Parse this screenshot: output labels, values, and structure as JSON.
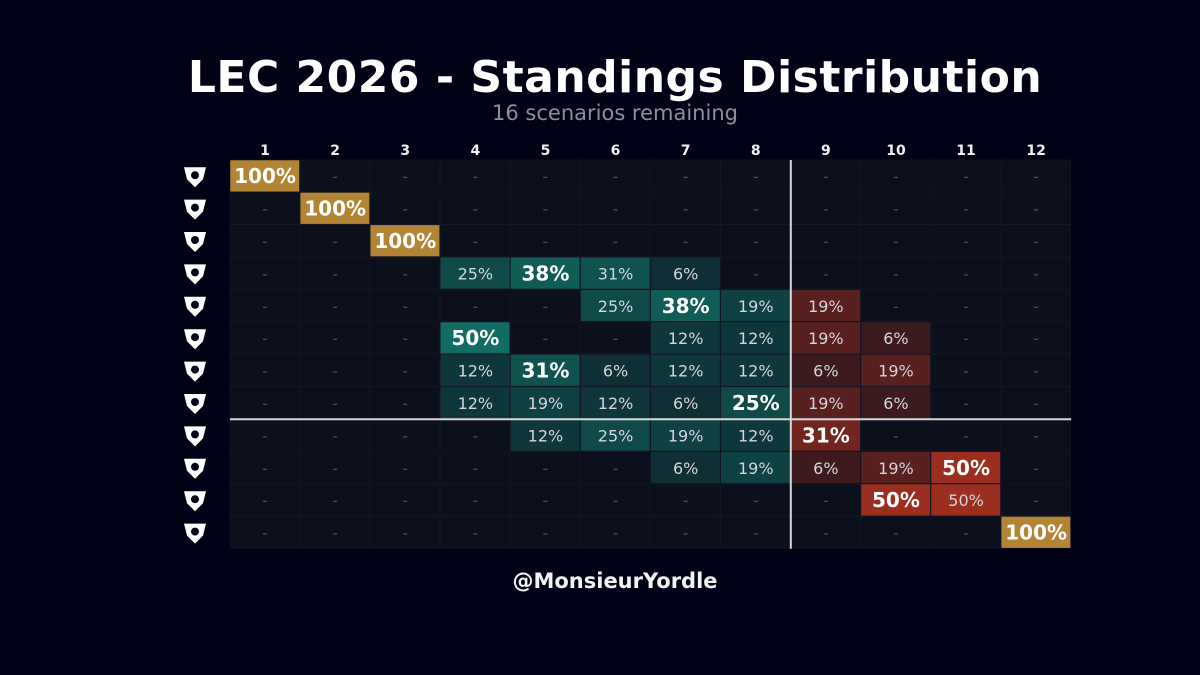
{
  "title": "LEC 2026 - Standings Distribution",
  "subtitle": "16 scenarios remaining",
  "credit": "@MonsieurYordle",
  "colors": {
    "background": "#020217",
    "empty_cell": "#0c0f1c",
    "gold": "#b28434",
    "teal": "#12776c",
    "red": "#a2301f",
    "divider": "#d8d8d8",
    "dash": "#4a4c5a"
  },
  "chart_data": {
    "type": "heatmap",
    "title": "LEC 2026 - Standings Distribution",
    "subtitle": "16 scenarios remaining",
    "columns": [
      "1",
      "2",
      "3",
      "4",
      "5",
      "6",
      "7",
      "8",
      "9",
      "10",
      "11",
      "12"
    ],
    "row_icons": [
      "team-logo",
      "team-logo",
      "team-logo",
      "team-logo",
      "team-logo",
      "team-logo",
      "team-logo",
      "team-logo",
      "team-logo",
      "team-logo",
      "team-logo",
      "team-logo"
    ],
    "empty_label": "-",
    "unit": "%",
    "values": [
      [
        100,
        0,
        0,
        0,
        0,
        0,
        0,
        0,
        0,
        0,
        0,
        0
      ],
      [
        0,
        100,
        0,
        0,
        0,
        0,
        0,
        0,
        0,
        0,
        0,
        0
      ],
      [
        0,
        0,
        100,
        0,
        0,
        0,
        0,
        0,
        0,
        0,
        0,
        0
      ],
      [
        0,
        0,
        0,
        25,
        38,
        31,
        6,
        0,
        0,
        0,
        0,
        0
      ],
      [
        0,
        0,
        0,
        0,
        0,
        25,
        38,
        19,
        19,
        0,
        0,
        0
      ],
      [
        0,
        0,
        0,
        50,
        0,
        0,
        12,
        12,
        19,
        6,
        0,
        0
      ],
      [
        0,
        0,
        0,
        12,
        31,
        6,
        12,
        12,
        6,
        19,
        0,
        0
      ],
      [
        0,
        0,
        0,
        12,
        19,
        12,
        6,
        25,
        19,
        6,
        0,
        0
      ],
      [
        0,
        0,
        0,
        0,
        12,
        25,
        19,
        12,
        31,
        0,
        0,
        0
      ],
      [
        0,
        0,
        0,
        0,
        0,
        0,
        6,
        19,
        6,
        19,
        50,
        0
      ],
      [
        0,
        0,
        0,
        0,
        0,
        0,
        0,
        0,
        0,
        50,
        50,
        0
      ],
      [
        0,
        0,
        0,
        0,
        0,
        0,
        0,
        0,
        0,
        0,
        0,
        100
      ]
    ],
    "highlight_bold": [
      [
        0,
        0
      ],
      [
        1,
        1
      ],
      [
        2,
        2
      ],
      [
        3,
        4
      ],
      [
        4,
        6
      ],
      [
        5,
        3
      ],
      [
        6,
        4
      ],
      [
        7,
        7
      ],
      [
        8,
        8
      ],
      [
        9,
        10
      ],
      [
        10,
        9
      ],
      [
        11,
        11
      ]
    ],
    "dividers": {
      "vertical_after_column": 8,
      "horizontal_after_row": 8
    },
    "zones": {
      "gold_full": 100,
      "teal_columns": [
        1,
        2,
        3,
        4,
        5,
        6,
        7,
        8
      ],
      "red_columns": [
        9,
        10,
        11,
        12
      ]
    },
    "legend": "none",
    "grid": true
  }
}
